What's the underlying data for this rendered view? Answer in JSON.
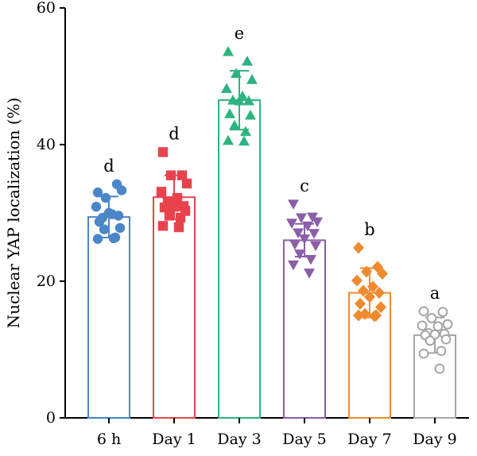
{
  "chart_data": {
    "type": "bar",
    "title": "",
    "xlabel": "",
    "ylabel": "Nuclear YAP localization (%)",
    "ylim": [
      0,
      60
    ],
    "yticks": [
      0,
      20,
      40,
      60
    ],
    "grid": false,
    "categories": [
      "6 h",
      "Day 1",
      "Day 3",
      "Day 5",
      "Day 7",
      "Day 9"
    ],
    "values": [
      29.4,
      32.3,
      46.5,
      26.0,
      18.3,
      12.1
    ],
    "errors": [
      3.0,
      3.2,
      4.3,
      2.4,
      3.6,
      2.6
    ],
    "significance": [
      "d",
      "d",
      "e",
      "c",
      "b",
      "a"
    ],
    "colors": [
      "#4a86c8",
      "#e8434d",
      "#2db37f",
      "#8a5ea8",
      "#f08a2e",
      "#a6a6a6"
    ],
    "markers": [
      "circle",
      "square",
      "triangle-up",
      "triangle-down",
      "diamond",
      "circle-open"
    ],
    "points": [
      [
        33.0,
        34.2,
        32.2,
        33.3,
        30.9,
        29.8,
        29.3,
        29.6,
        30.0,
        28.7,
        27.8,
        27.6,
        26.4,
        26.2,
        26.3
      ],
      [
        38.9,
        35.5,
        35.5,
        34.3,
        33.1,
        32.2,
        31.7,
        31.0,
        30.9,
        30.8,
        30.3,
        29.6,
        29.3,
        28.1,
        27.9
      ],
      [
        53.6,
        52.2,
        50.4,
        49.5,
        48.2,
        47.1,
        46.5,
        46.4,
        46.4,
        44.5,
        44.3,
        42.8,
        41.9,
        40.6,
        40.5
      ],
      [
        31.3,
        29.4,
        29.3,
        28.7,
        28.5,
        28.1,
        27.1,
        27.0,
        26.2,
        25.4,
        25.2,
        24.0,
        23.2,
        22.4,
        21.2
      ],
      [
        24.9,
        22.1,
        21.4,
        21.1,
        20.1,
        19.2,
        18.6,
        18.3,
        17.7,
        16.7,
        16.2,
        15.2,
        15.0,
        15.0,
        14.9
      ],
      [
        15.6,
        15.5,
        14.6,
        13.7,
        13.5,
        13.4,
        12.4,
        12.3,
        12.2,
        12.1,
        11.5,
        11.3,
        9.8,
        9.4,
        7.2
      ]
    ]
  }
}
